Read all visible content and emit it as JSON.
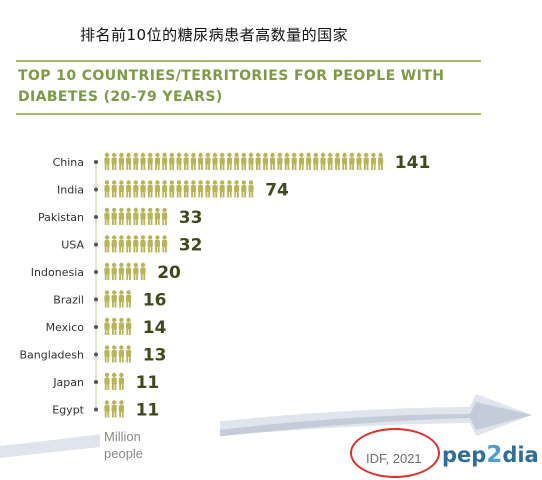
{
  "page": {
    "title_cn": "排名前10位的糖尿病患者高数量的国家",
    "title_en": "TOP 10 COUNTRIES/TERRITORIES FOR PEOPLE WITH DIABETES (20-79 YEARS)",
    "unit_label": "Million people",
    "source_label": "IDF, 2021",
    "logo_text": "pep2dia",
    "colors": {
      "accent_green": "#a9b96a",
      "title_green": "#7e9a44",
      "icon_fill": "#b8b457",
      "value_text": "#3f4a1c",
      "source_circle": "#d9322b",
      "logo_blue": "#2f6f97"
    }
  },
  "chart_data": {
    "type": "bar",
    "subtype": "pictograph",
    "categories": [
      "China",
      "India",
      "Pakistan",
      "USA",
      "Indonesia",
      "Brazil",
      "Mexico",
      "Bangladesh",
      "Japan",
      "Egypt"
    ],
    "values": [
      141,
      74,
      33,
      32,
      20,
      16,
      14,
      13,
      11,
      11
    ],
    "value_labels": [
      "141",
      "74",
      "33",
      "32",
      "20",
      "16",
      "14",
      "13",
      "11",
      "11"
    ],
    "unit": "Million people",
    "orientation": "horizontal",
    "sort": "descending"
  }
}
